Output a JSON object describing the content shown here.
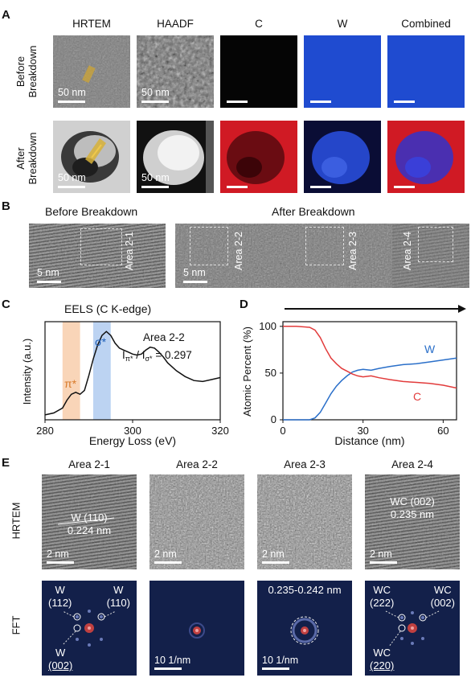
{
  "panelA": {
    "label": "A",
    "columns": [
      "HRTEM",
      "HAADF",
      "C",
      "W",
      "Combined"
    ],
    "rows": [
      {
        "label_line1": "Before",
        "label_line2": "Breakdown"
      },
      {
        "label_line1": "After",
        "label_line2": "Breakdown"
      }
    ],
    "scale_text": "50 nm"
  },
  "panelB": {
    "label": "B",
    "title_before": "Before Breakdown",
    "title_after": "After Breakdown",
    "scale_text": "5 nm",
    "areas": [
      "Area 2-1",
      "Area 2-2",
      "Area 2-3",
      "Area 2-4"
    ]
  },
  "panelC": {
    "label": "C",
    "title": "EELS (C K-edge)",
    "area": "Area 2-2",
    "pi_label": "π*",
    "sigma_label": "σ*",
    "ratio_text": "Iπ*/Iσ* = 0.297",
    "ratio_value": 0.297,
    "xlabel": "Energy Loss (eV)",
    "ylabel": "Intensity (a.u.)",
    "pi_color": "#f9d5b8",
    "sigma_color": "#bcd3f2"
  },
  "panelD": {
    "label": "D",
    "xlabel": "Distance (nm)",
    "ylabel": "Atomic Percent (%)",
    "w_color": "#2a6fc9",
    "c_color": "#e23b3b"
  },
  "chart_data": [
    {
      "type": "line",
      "panel": "C",
      "title": "EELS (C K-edge)",
      "xlabel": "Energy Loss (eV)",
      "ylabel": "Intensity (a.u.)",
      "xlim": [
        280,
        320
      ],
      "xticks": [
        280,
        300,
        320
      ],
      "pi_band_eV": [
        284,
        288
      ],
      "sigma_band_eV": [
        291,
        295
      ],
      "series": [
        {
          "x": [
            280,
            282,
            284,
            285,
            286,
            287,
            288,
            289,
            290,
            291,
            292,
            293,
            294,
            295,
            296,
            297,
            298,
            299,
            300,
            301,
            302,
            303,
            304,
            305,
            306,
            307,
            308,
            309,
            310,
            312,
            314,
            316,
            318,
            320
          ],
          "values": [
            0.05,
            0.07,
            0.12,
            0.2,
            0.26,
            0.28,
            0.26,
            0.3,
            0.45,
            0.62,
            0.76,
            0.86,
            0.9,
            0.86,
            0.78,
            0.73,
            0.71,
            0.69,
            0.67,
            0.66,
            0.67,
            0.71,
            0.74,
            0.73,
            0.69,
            0.64,
            0.58,
            0.54,
            0.5,
            0.44,
            0.4,
            0.39,
            0.41,
            0.43
          ]
        }
      ]
    },
    {
      "type": "line",
      "panel": "D",
      "xlabel": "Distance (nm)",
      "ylabel": "Atomic Percent (%)",
      "xlim": [
        0,
        65
      ],
      "ylim": [
        0,
        105
      ],
      "xticks": [
        0,
        30,
        60
      ],
      "yticks": [
        0,
        50,
        100
      ],
      "series": [
        {
          "name": "W",
          "x": [
            0,
            5,
            10,
            12,
            14,
            16,
            18,
            20,
            22,
            24,
            26,
            28,
            30,
            33,
            36,
            40,
            45,
            50,
            55,
            60,
            65
          ],
          "values": [
            0,
            0,
            0,
            2,
            8,
            18,
            28,
            36,
            42,
            47,
            51,
            53,
            54,
            53,
            55,
            57,
            59,
            60,
            62,
            64,
            66
          ]
        },
        {
          "name": "C",
          "x": [
            0,
            5,
            10,
            12,
            14,
            16,
            18,
            20,
            22,
            24,
            26,
            28,
            30,
            33,
            36,
            40,
            45,
            50,
            55,
            60,
            65
          ],
          "values": [
            100,
            100,
            99,
            96,
            88,
            76,
            66,
            60,
            55,
            52,
            49,
            47,
            46,
            47,
            45,
            43,
            41,
            40,
            39,
            37,
            34
          ]
        }
      ]
    }
  ],
  "panelE": {
    "label": "E",
    "columns": [
      "Area 2-1",
      "Area 2-2",
      "Area 2-3",
      "Area 2-4"
    ],
    "row_hrtem": "HRTEM",
    "row_fft": "FFT",
    "hr_scale": "2 nm",
    "fft_scale": "10 1/nm",
    "a1_spacing_line1": "W (110)",
    "a1_spacing_line2": "0.224 nm",
    "a4_spacing_line1": "WC (002)",
    "a4_spacing_line2": "0.235 nm",
    "a3_fft_label": "0.235-0.242 nm",
    "fft1_labels": [
      "W",
      "(112)",
      "W",
      "(110)",
      "W",
      "(002)"
    ],
    "fft4_labels": [
      "WC",
      "(222)",
      "WC",
      "(002)",
      "WC",
      "(220)"
    ]
  }
}
